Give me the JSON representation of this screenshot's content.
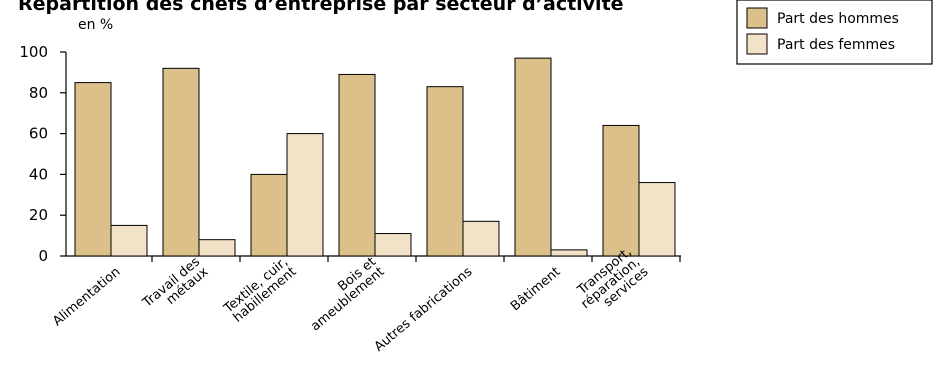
{
  "chart_data": {
    "type": "bar",
    "title": "Répartition des chefs d’entreprise par secteur d’activité",
    "ylabel": "en %",
    "ylim": [
      0,
      100
    ],
    "yticks": [
      "0",
      "20",
      "40",
      "60",
      "80",
      "100"
    ],
    "grid": false,
    "legend_position": "top-right",
    "categories": [
      [
        "Alimentation"
      ],
      [
        "Travail des",
        "métaux"
      ],
      [
        "Textile, cuir,",
        "habillement"
      ],
      [
        "Bois et",
        "ameublement"
      ],
      [
        "Autres fabrications"
      ],
      [
        "Bâtiment"
      ],
      [
        "Transport,",
        "réparation,",
        "services"
      ]
    ],
    "series": [
      {
        "name": "Part des hommes",
        "color": "#dcc08a",
        "values": [
          85,
          92,
          40,
          89,
          83,
          97,
          64
        ]
      },
      {
        "name": "Part des femmes",
        "color": "#f2e3c8",
        "values": [
          15,
          8,
          60,
          11,
          17,
          3,
          36
        ]
      }
    ]
  }
}
